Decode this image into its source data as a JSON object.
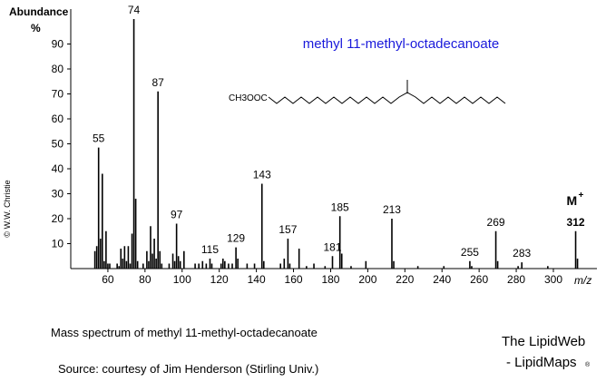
{
  "chart_data": {
    "type": "bar",
    "title": "methyl 11-methyl-octadecanoate",
    "y_label": "Abundance",
    "y_unit": "%",
    "x_label": "m/z",
    "structure_label": "CH3OOC",
    "credit": "© W.W. Christie",
    "caption": "Mass spectrum of methyl 11-methyl-octadecanoate",
    "source": "Source:  courtesy of Jim Henderson (Stirling Univ.)",
    "brand": "The LipidWeb",
    "brand_sub": "- LipidMaps",
    "brand_mark": "®",
    "color": "#000000",
    "x": [
      53,
      54,
      55,
      56,
      57,
      58,
      59,
      60,
      61,
      65,
      66,
      67,
      68,
      69,
      70,
      71,
      72,
      73,
      74,
      75,
      76,
      79,
      81,
      82,
      83,
      84,
      85,
      86,
      87,
      88,
      89,
      93,
      95,
      96,
      97,
      98,
      99,
      101,
      107,
      109,
      111,
      113,
      115,
      116,
      121,
      122,
      123,
      125,
      127,
      129,
      130,
      135,
      139,
      143,
      144,
      153,
      155,
      157,
      158,
      163,
      167,
      171,
      177,
      181,
      185,
      186,
      191,
      199,
      213,
      214,
      227,
      241,
      255,
      256,
      269,
      270,
      281,
      283,
      297,
      312,
      313
    ],
    "values": [
      7,
      9,
      48.5,
      12,
      38,
      3,
      15,
      2,
      2,
      2,
      1,
      8,
      4,
      9,
      3,
      9,
      2,
      14,
      100,
      28,
      3,
      2,
      7,
      3,
      17,
      6,
      12,
      4,
      71,
      7,
      2,
      2,
      6,
      3,
      18,
      5,
      3,
      7,
      2,
      2,
      3,
      2,
      4,
      2,
      2,
      4,
      3,
      2,
      2,
      8.5,
      4,
      2,
      2,
      34,
      3,
      2,
      4,
      12,
      2,
      8,
      1,
      2,
      1,
      5,
      21,
      6,
      1,
      3,
      20,
      3,
      1,
      1,
      3,
      1,
      15,
      3,
      1,
      2.5,
      1,
      15,
      4
    ],
    "peak_labels": [
      55,
      74,
      87,
      97,
      115,
      129,
      143,
      157,
      181,
      185,
      213,
      255,
      269,
      283
    ],
    "molecular_ion": {
      "symbol": "M",
      "charge": "+",
      "mz": 312
    },
    "xlim": [
      40,
      322
    ],
    "ylim": [
      0,
      104
    ],
    "xticks": [
      60,
      80,
      100,
      120,
      140,
      160,
      180,
      200,
      220,
      240,
      260,
      280,
      300
    ],
    "yticks": [
      10,
      20,
      30,
      40,
      50,
      60,
      70,
      80,
      90
    ]
  }
}
